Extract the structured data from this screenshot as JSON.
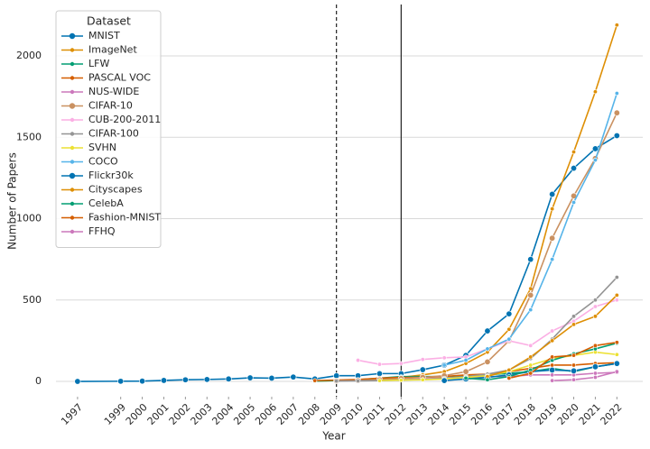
{
  "chart_data": {
    "type": "line",
    "x_label": "Year",
    "y_label": "Number of Papers",
    "legend_title": "Dataset",
    "legend": "upper left",
    "grid": true,
    "xlim": [
      1996,
      2023.2
    ],
    "ylim": [
      -94,
      2316
    ],
    "xticks": [
      1997,
      1999,
      2000,
      2001,
      2002,
      2003,
      2004,
      2005,
      2006,
      2007,
      2008,
      2009,
      2010,
      2011,
      2012,
      2013,
      2014,
      2015,
      2016,
      2017,
      2018,
      2019,
      2020,
      2021,
      2022
    ],
    "yticks": [
      0,
      500,
      1000,
      1500,
      2000
    ],
    "vlines": [
      {
        "x": 2009,
        "style": "dashed"
      },
      {
        "x": 2012,
        "style": "solid"
      }
    ],
    "series": [
      {
        "name": "MNIST",
        "color": "#0173b2",
        "x": [
          1997,
          1999,
          2000,
          2001,
          2002,
          2003,
          2004,
          2005,
          2006,
          2007,
          2008,
          2009,
          2010,
          2011,
          2012,
          2013,
          2014,
          2015,
          2016,
          2017,
          2018,
          2019,
          2020,
          2021,
          2022
        ],
        "values": [
          0,
          1,
          2,
          6,
          10,
          12,
          15,
          22,
          20,
          27,
          15,
          35,
          35,
          48,
          48,
          72,
          100,
          160,
          310,
          415,
          750,
          1150,
          1310,
          1430,
          1510
        ]
      },
      {
        "name": "ImageNet",
        "color": "#de8f05",
        "x": [
          2008,
          2009,
          2010,
          2011,
          2012,
          2013,
          2014,
          2015,
          2016,
          2017,
          2018,
          2019,
          2020,
          2021,
          2022
        ],
        "values": [
          2,
          5,
          8,
          15,
          25,
          40,
          60,
          110,
          180,
          320,
          570,
          1060,
          1410,
          1780,
          2190
        ]
      },
      {
        "name": "LFW",
        "color": "#029e73",
        "x": [
          2008,
          2009,
          2010,
          2011,
          2012,
          2013,
          2014,
          2015,
          2016,
          2017,
          2018,
          2019,
          2020,
          2021,
          2022
        ],
        "values": [
          2,
          5,
          10,
          20,
          30,
          30,
          30,
          35,
          40,
          50,
          60,
          80,
          60,
          90,
          110
        ]
      },
      {
        "name": "PASCAL VOC",
        "color": "#d55e00",
        "x": [
          2008,
          2009,
          2010,
          2011,
          2012,
          2013,
          2014,
          2015,
          2016,
          2017,
          2018,
          2019,
          2020,
          2021,
          2022
        ],
        "values": [
          5,
          8,
          12,
          20,
          25,
          25,
          30,
          40,
          45,
          60,
          80,
          100,
          100,
          110,
          115
        ]
      },
      {
        "name": "NUS-WIDE",
        "color": "#cc78bc",
        "x": [
          2009,
          2010,
          2011,
          2012,
          2013,
          2014,
          2015,
          2016,
          2017,
          2018,
          2019,
          2020,
          2021,
          2022
        ],
        "values": [
          3,
          5,
          8,
          10,
          15,
          20,
          25,
          30,
          30,
          40,
          40,
          40,
          50,
          55
        ]
      },
      {
        "name": "CIFAR-10",
        "color": "#ca9161",
        "x": [
          2009,
          2010,
          2011,
          2012,
          2013,
          2014,
          2015,
          2016,
          2017,
          2018,
          2019,
          2020,
          2021,
          2022
        ],
        "values": [
          3,
          5,
          10,
          18,
          25,
          35,
          60,
          120,
          250,
          530,
          880,
          1140,
          1370,
          1650
        ]
      },
      {
        "name": "CUB-200-2011",
        "color": "#fbafe4",
        "x": [
          2010,
          2011,
          2012,
          2013,
          2014,
          2015,
          2016,
          2017,
          2018,
          2019,
          2020,
          2021,
          2022
        ],
        "values": [
          130,
          105,
          110,
          135,
          145,
          150,
          200,
          250,
          220,
          310,
          370,
          460,
          500
        ]
      },
      {
        "name": "CIFAR-100",
        "color": "#949494",
        "x": [
          2009,
          2010,
          2011,
          2012,
          2013,
          2014,
          2015,
          2016,
          2017,
          2018,
          2019,
          2020,
          2021,
          2022
        ],
        "values": [
          2,
          3,
          5,
          8,
          12,
          20,
          30,
          45,
          70,
          140,
          260,
          400,
          500,
          640
        ]
      },
      {
        "name": "SVHN",
        "color": "#ece133",
        "x": [
          2011,
          2012,
          2013,
          2014,
          2015,
          2016,
          2017,
          2018,
          2019,
          2020,
          2021,
          2022
        ],
        "values": [
          5,
          8,
          10,
          15,
          25,
          35,
          60,
          100,
          140,
          160,
          180,
          165
        ]
      },
      {
        "name": "COCO",
        "color": "#56b4e9",
        "x": [
          2014,
          2015,
          2016,
          2017,
          2018,
          2019,
          2020,
          2021,
          2022
        ],
        "values": [
          100,
          130,
          200,
          260,
          440,
          750,
          1100,
          1360,
          1770
        ]
      },
      {
        "name": "Flickr30k",
        "color": "#0173b2",
        "x": [
          2014,
          2015,
          2016,
          2017,
          2018,
          2019,
          2020,
          2021,
          2022
        ],
        "values": [
          5,
          15,
          25,
          40,
          60,
          70,
          65,
          90,
          110
        ]
      },
      {
        "name": "Cityscapes",
        "color": "#de8f05",
        "x": [
          2016,
          2017,
          2018,
          2019,
          2020,
          2021,
          2022
        ],
        "values": [
          30,
          70,
          150,
          250,
          350,
          400,
          530
        ]
      },
      {
        "name": "CelebA",
        "color": "#029e73",
        "x": [
          2015,
          2016,
          2017,
          2018,
          2019,
          2020,
          2021,
          2022
        ],
        "values": [
          20,
          10,
          30,
          70,
          130,
          170,
          200,
          235
        ]
      },
      {
        "name": "Fashion-MNIST",
        "color": "#d55e00",
        "x": [
          2017,
          2018,
          2019,
          2020,
          2021,
          2022
        ],
        "values": [
          20,
          50,
          150,
          160,
          220,
          240
        ]
      },
      {
        "name": "FFHQ",
        "color": "#cc78bc",
        "x": [
          2019,
          2020,
          2021,
          2022
        ],
        "values": [
          5,
          10,
          25,
          60
        ]
      }
    ]
  }
}
